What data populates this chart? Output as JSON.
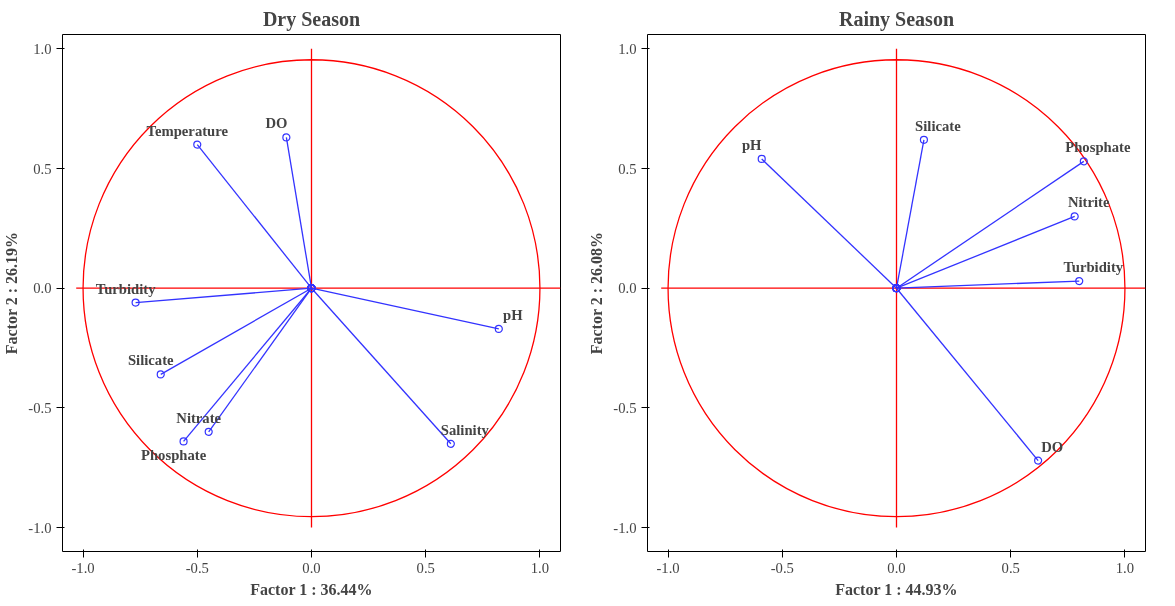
{
  "chart_data": [
    {
      "type": "line",
      "title": "Dry Season",
      "xlabel": "Factor 1 : 36.44%",
      "ylabel": "Factor 2 : 26.19%",
      "xlim": [
        -1.09,
        1.09
      ],
      "ylim": [
        -1.1,
        1.06
      ],
      "xticks": [
        {
          "value": -1,
          "label": "-1.0"
        },
        {
          "value": -0.5,
          "label": "-0.5"
        },
        {
          "value": 0,
          "label": "0.0"
        },
        {
          "value": 0.5,
          "label": "0.5"
        },
        {
          "value": 1,
          "label": "1.0"
        }
      ],
      "yticks": [
        {
          "value": -1,
          "label": "-1.0"
        },
        {
          "value": -0.5,
          "label": "-0.5"
        },
        {
          "value": 0,
          "label": "0.0"
        },
        {
          "value": 0.5,
          "label": "0.5"
        },
        {
          "value": 1,
          "label": "1.0"
        }
      ],
      "grid": false,
      "legend": false,
      "marker": "circle",
      "line_style": "solid",
      "series": [
        {
          "color": "#ff0000",
          "marker": "none",
          "x": [
            -1.03,
            1.09
          ],
          "values": [
            0,
            0
          ]
        },
        {
          "color": "#ff0000",
          "marker": "none",
          "x": [
            0,
            0
          ],
          "values": [
            1,
            -1
          ]
        },
        {
          "name": "Temperature",
          "color": "#3333ff",
          "x": [
            0,
            -0.5
          ],
          "values": [
            0,
            0.6
          ]
        },
        {
          "name": "DO",
          "color": "#3333ff",
          "x": [
            0,
            -0.11
          ],
          "values": [
            0,
            0.63
          ]
        },
        {
          "name": "Turbidity",
          "color": "#3333ff",
          "x": [
            0,
            -0.77
          ],
          "values": [
            0,
            -0.06
          ]
        },
        {
          "name": "pH",
          "color": "#3333ff",
          "x": [
            0,
            0.82
          ],
          "values": [
            0,
            -0.17
          ]
        },
        {
          "name": "Silicate",
          "color": "#3333ff",
          "x": [
            0,
            -0.66
          ],
          "values": [
            0,
            -0.36
          ]
        },
        {
          "name": "Nitrate",
          "color": "#3333ff",
          "x": [
            0,
            -0.45
          ],
          "values": [
            0,
            -0.6
          ]
        },
        {
          "name": "Phosphate",
          "color": "#3333ff",
          "x": [
            0,
            -0.56
          ],
          "values": [
            0,
            -0.64
          ]
        },
        {
          "name": "Salinity",
          "color": "#3333ff",
          "x": [
            0,
            0.61
          ],
          "values": [
            0,
            -0.65
          ]
        }
      ]
    },
    {
      "type": "line",
      "title": "Rainy Season",
      "xlabel": "Factor 1 : 44.93%",
      "ylabel": "Factor 2 : 26.08%",
      "xlim": [
        -1.09,
        1.09
      ],
      "ylim": [
        -1.1,
        1.06
      ],
      "xticks": [
        {
          "value": -1,
          "label": "-1.0"
        },
        {
          "value": -0.5,
          "label": "-0.5"
        },
        {
          "value": 0,
          "label": "0.0"
        },
        {
          "value": 0.5,
          "label": "0.5"
        },
        {
          "value": 1,
          "label": "1.0"
        }
      ],
      "yticks": [
        {
          "value": -1,
          "label": "-1.0"
        },
        {
          "value": -0.5,
          "label": "-0.5"
        },
        {
          "value": 0,
          "label": "0.0"
        },
        {
          "value": 0.5,
          "label": "0.5"
        },
        {
          "value": 1,
          "label": "1.0"
        }
      ],
      "grid": false,
      "legend": false,
      "marker": "circle",
      "line_style": "solid",
      "series": [
        {
          "color": "#ff0000",
          "marker": "none",
          "x": [
            -1.03,
            1.09
          ],
          "values": [
            0,
            0
          ]
        },
        {
          "color": "#ff0000",
          "marker": "none",
          "x": [
            0,
            0
          ],
          "values": [
            1,
            -1
          ]
        },
        {
          "name": "pH",
          "color": "#3333ff",
          "x": [
            0,
            -0.59
          ],
          "values": [
            0,
            0.54
          ]
        },
        {
          "name": "Silicate",
          "color": "#3333ff",
          "x": [
            0,
            0.12
          ],
          "values": [
            0,
            0.62
          ]
        },
        {
          "name": "Phosphate",
          "color": "#3333ff",
          "x": [
            0,
            0.82
          ],
          "values": [
            0,
            0.53
          ]
        },
        {
          "name": "Nitrite",
          "color": "#3333ff",
          "x": [
            0,
            0.78
          ],
          "values": [
            0,
            0.3
          ]
        },
        {
          "name": "Turbidity",
          "color": "#3333ff",
          "x": [
            0,
            0.8
          ],
          "values": [
            0,
            0.03
          ]
        },
        {
          "name": "DO",
          "color": "#3333ff",
          "x": [
            0,
            0.62
          ],
          "values": [
            0,
            -0.72
          ]
        }
      ]
    }
  ]
}
